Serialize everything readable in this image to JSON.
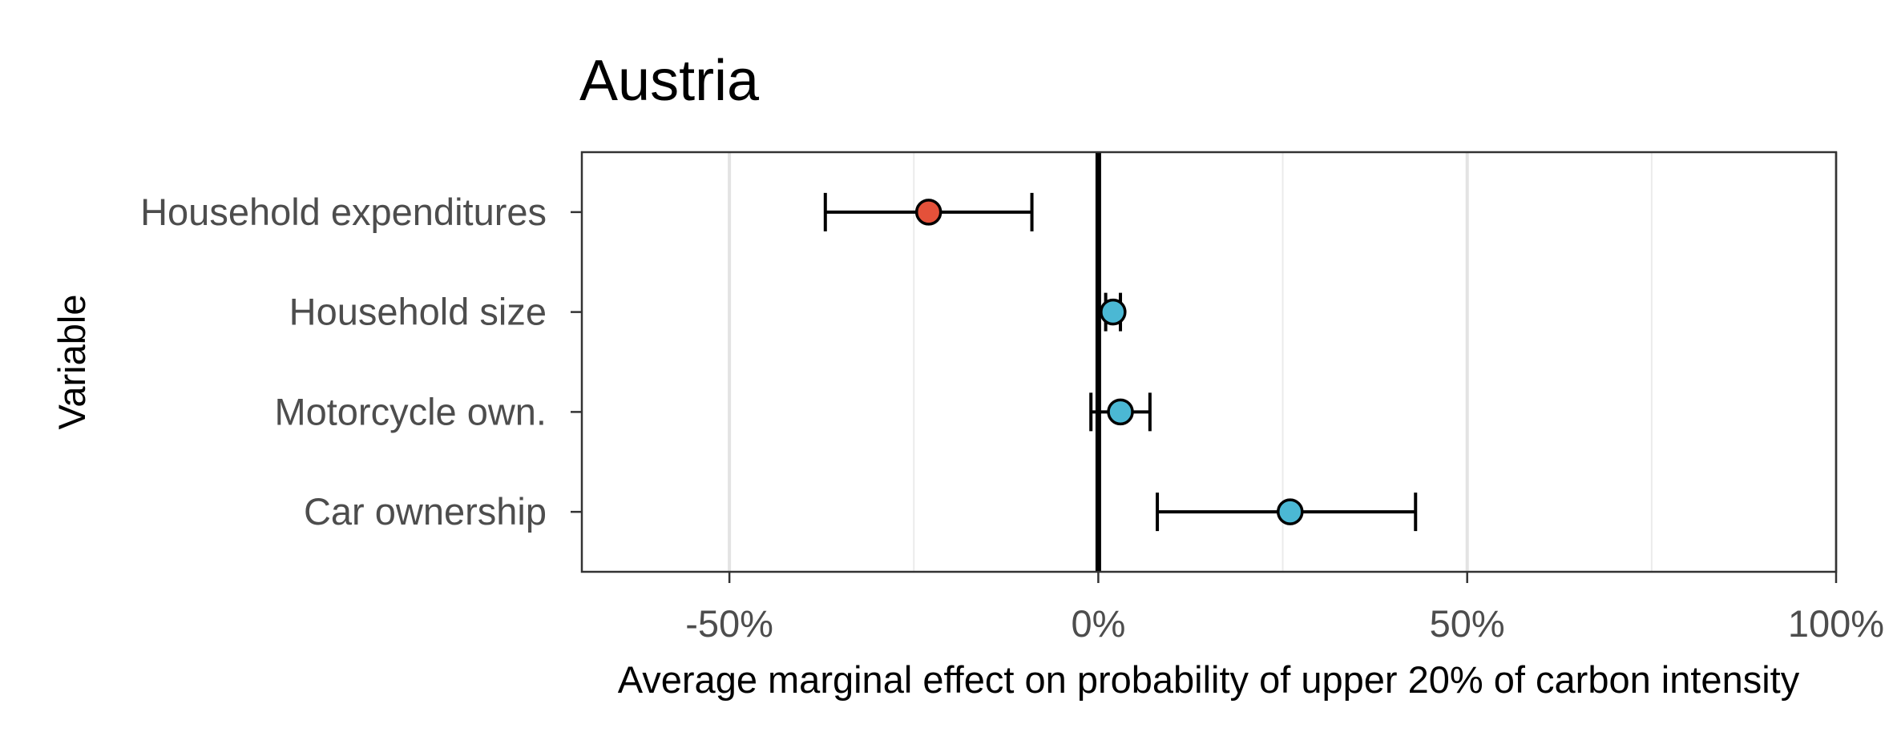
{
  "chart_data": {
    "type": "scatter",
    "subtype": "coefficient-plot-with-error-bars",
    "title": "Austria",
    "xlabel": "Average marginal effect on probability of upper 20% of carbon intensity",
    "ylabel": "Variable",
    "xlim": [
      -0.7,
      1.0
    ],
    "xticks": [
      -0.5,
      0,
      0.5,
      1.0
    ],
    "xtick_labels": [
      "-50%",
      "0%",
      "50%",
      "100%"
    ],
    "minor_gridlines": [
      -0.25,
      0.25,
      0.75
    ],
    "reference_line": 0,
    "grid": true,
    "categories": [
      "Household expenditures",
      "Household size",
      "Motorcycle own.",
      "Car ownership"
    ],
    "estimates": [
      -0.23,
      0.02,
      0.03,
      0.26
    ],
    "ci_low": [
      -0.37,
      0.01,
      -0.01,
      0.08
    ],
    "ci_high": [
      -0.09,
      0.03,
      0.07,
      0.43
    ],
    "point_colors": [
      "#e4513a",
      "#4bb8d4",
      "#4bb8d4",
      "#4bb8d4"
    ]
  }
}
